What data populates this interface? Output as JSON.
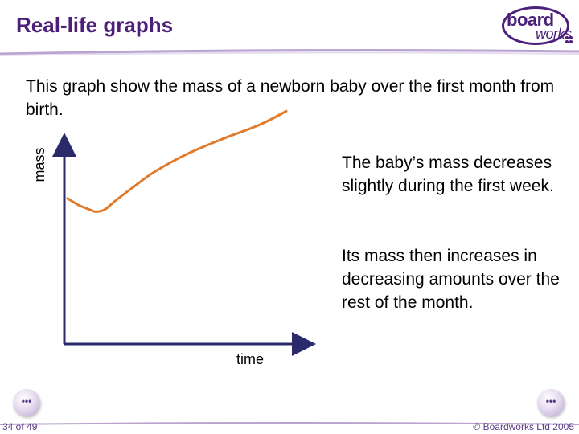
{
  "slide": {
    "title": "Real-life graphs",
    "intro": "This graph show the mass of a newborn baby over the first month from birth.",
    "note1": "The baby’s mass decreases slightly during the first week.",
    "note2": "Its mass then increases in decreasing amounts over the rest of the month.",
    "logo_word1": "board",
    "logo_word2": "works",
    "page_number": "34 of 49",
    "copyright": "© Boardworks Ltd 2005",
    "accent_color": "#4b1f7a",
    "curve_color": "#e07b2c"
  },
  "chart_data": {
    "type": "line",
    "title": "",
    "xlabel": "time",
    "ylabel": "mass",
    "grid": false,
    "tick_labels": false,
    "series": [
      {
        "values_description_free": true,
        "points": [
          [
            0.0,
            0.58
          ],
          [
            0.05,
            0.55
          ],
          [
            0.1,
            0.53
          ],
          [
            0.13,
            0.52
          ],
          [
            0.17,
            0.53
          ],
          [
            0.22,
            0.57
          ],
          [
            0.3,
            0.63
          ],
          [
            0.4,
            0.7
          ],
          [
            0.55,
            0.78
          ],
          [
            0.72,
            0.85
          ],
          [
            0.88,
            0.91
          ],
          [
            1.0,
            0.97
          ]
        ]
      }
    ],
    "xlim": [
      0,
      1
    ],
    "ylim": [
      0,
      1
    ]
  }
}
